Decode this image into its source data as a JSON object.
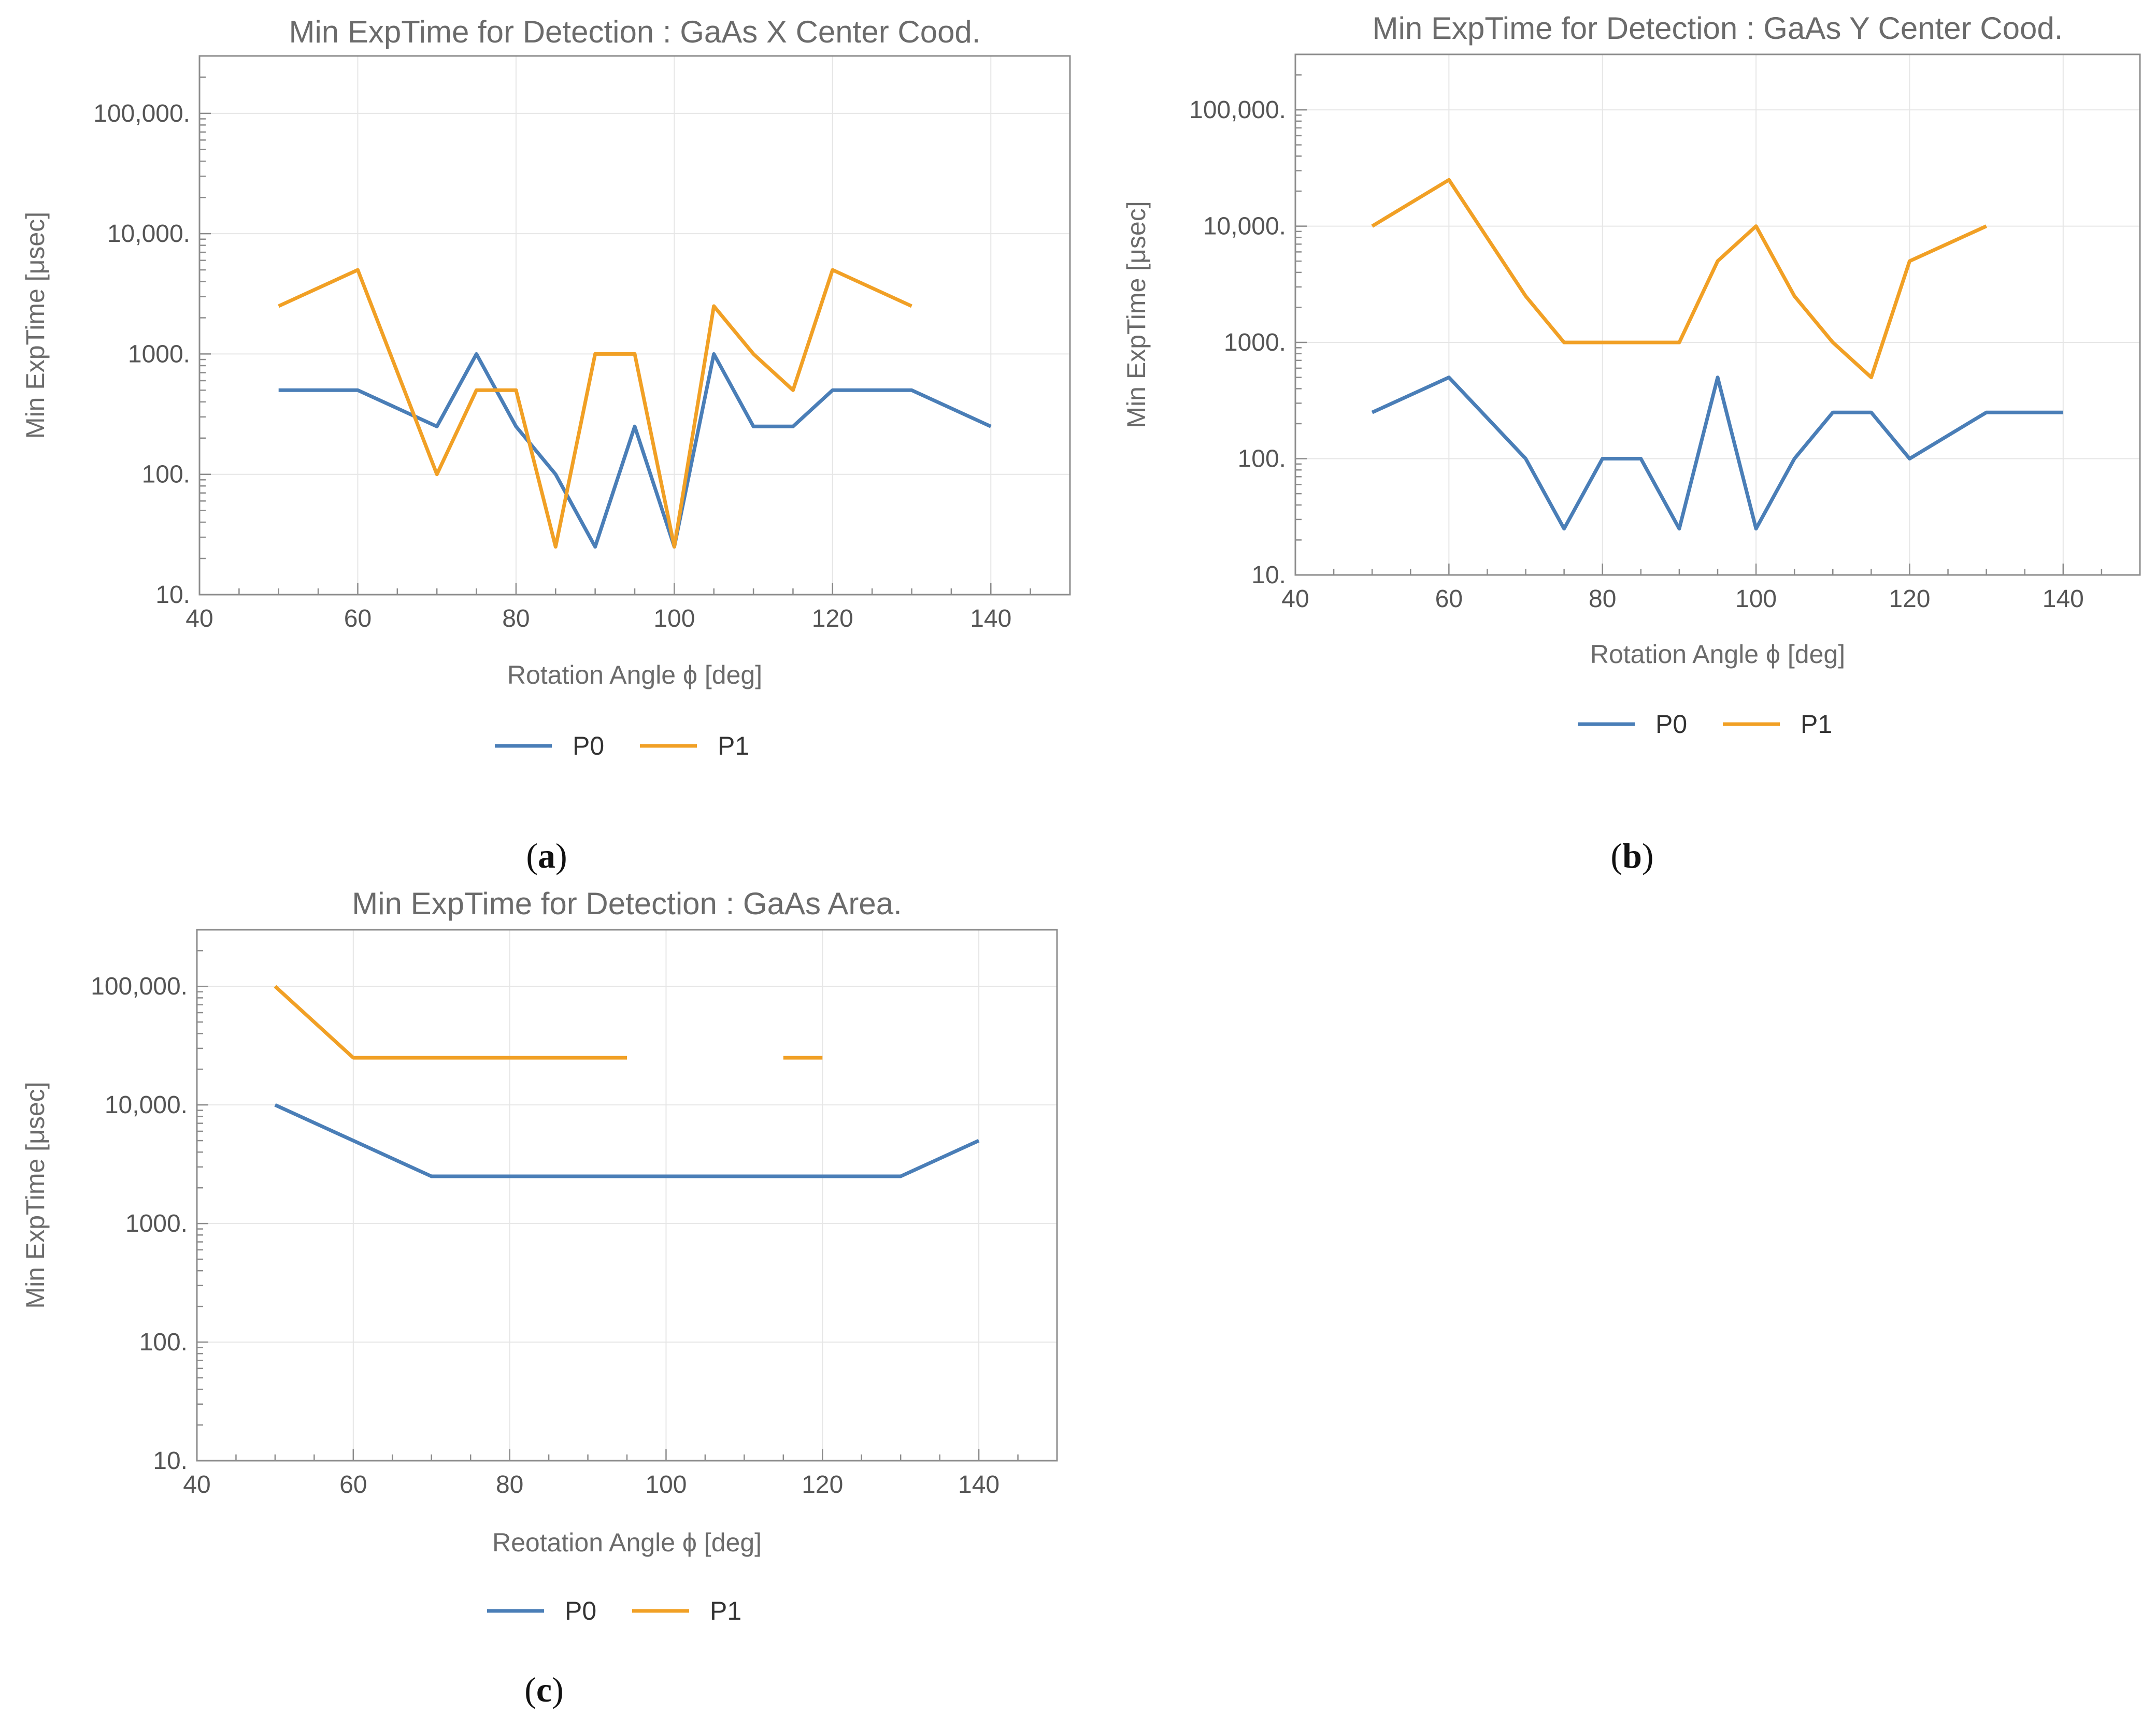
{
  "colors": {
    "P0": "#4a7eb7",
    "P1": "#f1a025",
    "grid": "#e6e6e6",
    "frame": "#8c8c8c",
    "text": "#6b6b6b"
  },
  "chart_data": [
    {
      "id": "a",
      "type": "line",
      "yscale": "log",
      "title": "Min ExpTime for Detection : GaAs X Center Cood.",
      "xlabel": "Rotation Angle ϕ [deg]",
      "ylabel": "Min ExpTime [μsec]",
      "xlim": [
        40,
        150
      ],
      "ylim": [
        10,
        300000
      ],
      "xticks": [
        40,
        60,
        80,
        100,
        120,
        140
      ],
      "xtick_labels": [
        "40",
        "60",
        "80",
        "100",
        "120",
        "140"
      ],
      "yticks": [
        10,
        100,
        1000,
        10000,
        100000
      ],
      "ytick_labels": [
        "10.",
        "100.",
        "1000.",
        "10,000.",
        "100,000."
      ],
      "legend": [
        "P0",
        "P1"
      ],
      "caption_letter": "a",
      "series": [
        {
          "name": "P0",
          "x": [
            50,
            60,
            70,
            75,
            80,
            85,
            90,
            95,
            100,
            105,
            110,
            115,
            120,
            130,
            140
          ],
          "values": [
            500,
            500,
            250,
            1000,
            250,
            100,
            25,
            250,
            25,
            1000,
            250,
            250,
            500,
            500,
            250
          ]
        },
        {
          "name": "P1",
          "x": [
            50,
            60,
            70,
            75,
            80,
            85,
            90,
            95,
            100,
            105,
            110,
            115,
            120,
            130
          ],
          "values": [
            2500,
            5000,
            100,
            500,
            500,
            25,
            1000,
            1000,
            25,
            2500,
            1000,
            500,
            5000,
            2500
          ]
        }
      ]
    },
    {
      "id": "b",
      "type": "line",
      "yscale": "log",
      "title": "Min ExpTime for Detection : GaAs Y Center Cood.",
      "xlabel": "Rotation Angle ϕ [deg]",
      "ylabel": "Min ExpTime [μsec]",
      "xlim": [
        40,
        150
      ],
      "ylim": [
        10,
        300000
      ],
      "xticks": [
        40,
        60,
        80,
        100,
        120,
        140
      ],
      "xtick_labels": [
        "40",
        "60",
        "80",
        "100",
        "120",
        "140"
      ],
      "yticks": [
        10,
        100,
        1000,
        10000,
        100000
      ],
      "ytick_labels": [
        "10.",
        "100.",
        "1000.",
        "10,000.",
        "100,000."
      ],
      "legend": [
        "P0",
        "P1"
      ],
      "caption_letter": "b",
      "series": [
        {
          "name": "P0",
          "x": [
            50,
            60,
            70,
            75,
            80,
            85,
            90,
            95,
            100,
            105,
            110,
            115,
            120,
            130,
            140
          ],
          "values": [
            250,
            500,
            100,
            25,
            100,
            100,
            25,
            500,
            25,
            100,
            250,
            250,
            100,
            250,
            250
          ]
        },
        {
          "name": "P1",
          "x": [
            50,
            60,
            70,
            75,
            80,
            85,
            90,
            95,
            100,
            105,
            110,
            115,
            120,
            130
          ],
          "values": [
            10000,
            25000,
            2500,
            1000,
            1000,
            1000,
            1000,
            5000,
            10000,
            2500,
            1000,
            500,
            5000,
            10000
          ]
        }
      ]
    },
    {
      "id": "c",
      "type": "line",
      "yscale": "log",
      "title": "Min ExpTime for Detection : GaAs Area.",
      "xlabel": "Reotation Angle ϕ [deg]",
      "ylabel": "Min ExpTime [μsec]",
      "xlim": [
        40,
        150
      ],
      "ylim": [
        10,
        300000
      ],
      "xticks": [
        40,
        60,
        80,
        100,
        120,
        140
      ],
      "xtick_labels": [
        "40",
        "60",
        "80",
        "100",
        "120",
        "140"
      ],
      "yticks": [
        10,
        100,
        1000,
        10000,
        100000
      ],
      "ytick_labels": [
        "10.",
        "100.",
        "1000.",
        "10,000.",
        "100,000."
      ],
      "legend": [
        "P0",
        "P1"
      ],
      "caption_letter": "c",
      "series": [
        {
          "name": "P0",
          "x": [
            50,
            60,
            70,
            80,
            90,
            100,
            110,
            120,
            130,
            140
          ],
          "values": [
            10000,
            5000,
            2500,
            2500,
            2500,
            2500,
            2500,
            2500,
            2500,
            5000
          ]
        },
        {
          "name": "P1",
          "segments": [
            {
              "x": [
                50,
                60,
                70,
                80,
                90,
                95
              ],
              "values": [
                100000,
                25000,
                25000,
                25000,
                25000,
                25000
              ]
            },
            {
              "x": [
                115,
                120
              ],
              "values": [
                25000,
                25000
              ]
            }
          ]
        }
      ]
    }
  ]
}
